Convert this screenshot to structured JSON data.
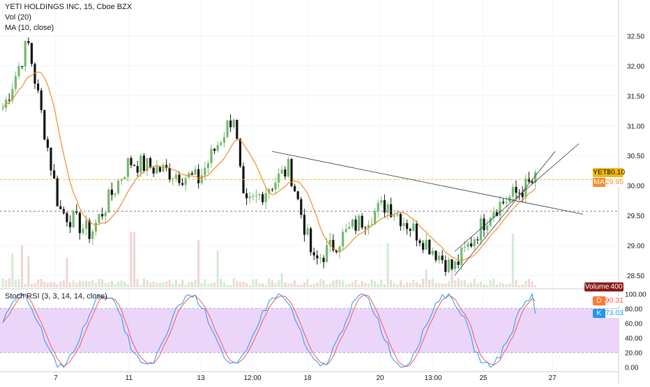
{
  "header": {
    "title": "YETI HOLDINGS INC, 15, Cboe BZX",
    "vol_label": "Vol (20)",
    "ma_label": "MA (10, close)"
  },
  "stoch": {
    "label": "Stoch RSI (3, 3, 14, 14, close)",
    "d_key": "D",
    "d_value": "90.31",
    "k_key": "K",
    "k_value": "73.03"
  },
  "badges": {
    "symbol_key": "YETI",
    "symbol_value": "30.10",
    "ma_key": "MA",
    "ma_value": "29.95",
    "volume_key": "Volume",
    "volume_value": "400"
  },
  "colors": {
    "up": "#6fba6f",
    "down": "#131313",
    "ma": "#f28c28",
    "last_price": "#f0b90b",
    "stoch_k": "#2196f3",
    "stoch_d": "#ff5252",
    "stoch_band": "#e4c8f8",
    "trendline": "#333333"
  },
  "chart_data": [
    {
      "type": "candlestick",
      "title": "YETI HOLDINGS INC, 15, Cboe BZX",
      "y_ticks": [
        "28.50",
        "29.00",
        "29.50",
        "30.00",
        "30.50",
        "31.00",
        "31.50",
        "32.00",
        "32.50"
      ],
      "ylim": [
        28.3,
        33.1
      ],
      "x_ticks": [
        "7",
        "11",
        "13",
        "12:00",
        "18",
        "20",
        "13:00",
        "25",
        "27"
      ],
      "last_price": 30.1,
      "ma_last": 29.95,
      "dashed_level": 29.57,
      "key_points": [
        {
          "x": "start",
          "close": 31.3
        },
        {
          "x": "peak",
          "close": 32.4
        },
        {
          "x": "7",
          "close": 29.6
        },
        {
          "x": "8",
          "close": 29.2
        },
        {
          "x": "11",
          "close": 30.4
        },
        {
          "x": "13",
          "close": 30.1
        },
        {
          "x": "13 close",
          "close": 31.2
        },
        {
          "x": "12:00",
          "close": 29.6
        },
        {
          "x": "17",
          "close": 30.3
        },
        {
          "x": "18",
          "close": 28.7
        },
        {
          "x": "19",
          "close": 29.3
        },
        {
          "x": "20",
          "close": 29.7
        },
        {
          "x": "13:00",
          "close": 28.6
        },
        {
          "x": "25",
          "close": 29.6
        },
        {
          "x": "26",
          "close": 30.1
        }
      ],
      "trendlines": [
        {
          "from": [
            30.57,
            "17"
          ],
          "to": [
            29.52,
            "27"
          ]
        },
        {
          "from": [
            28.5,
            "13:00"
          ],
          "to": [
            30.57,
            "27"
          ]
        },
        {
          "from": [
            28.9,
            "13:00"
          ],
          "to": [
            30.7,
            "27"
          ]
        }
      ]
    },
    {
      "type": "line",
      "title": "Stoch RSI (3, 3, 14, 14, close)",
      "y_ticks": [
        "0.00",
        "20.00",
        "40.00",
        "60.00",
        "80.00",
        "100.00"
      ],
      "ylim": [
        -5,
        105
      ],
      "band": [
        20,
        80
      ],
      "series": [
        {
          "name": "K",
          "last": 73.03
        },
        {
          "name": "D",
          "last": 90.31
        }
      ]
    }
  ]
}
